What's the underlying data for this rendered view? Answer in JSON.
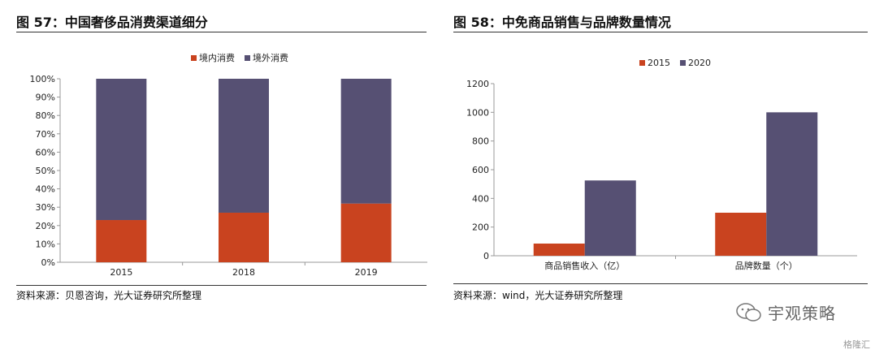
{
  "left": {
    "title": "图 57：中国奢侈品消费渠道细分",
    "source": "资料来源：贝恩咨询，光大证券研究所整理"
  },
  "right": {
    "title": "图 58：中免商品销售与品牌数量情况",
    "source": "资料来源：wind，光大证券研究所整理"
  },
  "watermark": {
    "brand": "宇观策略",
    "corner": "格隆汇"
  },
  "colors": {
    "orange": "#C9431F",
    "purple": "#565073",
    "axis": "#999999"
  },
  "chart_data": [
    {
      "type": "bar",
      "stacked": true,
      "categories": [
        "2015",
        "2018",
        "2019"
      ],
      "series": [
        {
          "name": "境内消费",
          "values": [
            23,
            27,
            32
          ],
          "color": "#C9431F"
        },
        {
          "name": "境外消费",
          "values": [
            77,
            73,
            68
          ],
          "color": "#565073"
        }
      ],
      "yticks": [
        "0%",
        "10%",
        "20%",
        "30%",
        "40%",
        "50%",
        "60%",
        "70%",
        "80%",
        "90%",
        "100%"
      ],
      "ylim": [
        0,
        100
      ],
      "legend": "top"
    },
    {
      "type": "bar",
      "categories": [
        "商品销售收入（亿）",
        "品牌数量（个）"
      ],
      "series": [
        {
          "name": "2015",
          "values": [
            85,
            300
          ],
          "color": "#C9431F"
        },
        {
          "name": "2020",
          "values": [
            525,
            1000
          ],
          "color": "#565073"
        }
      ],
      "yticks": [
        "0",
        "200",
        "400",
        "600",
        "800",
        "1000",
        "1200"
      ],
      "ylim": [
        0,
        1200
      ],
      "legend": "top"
    }
  ]
}
